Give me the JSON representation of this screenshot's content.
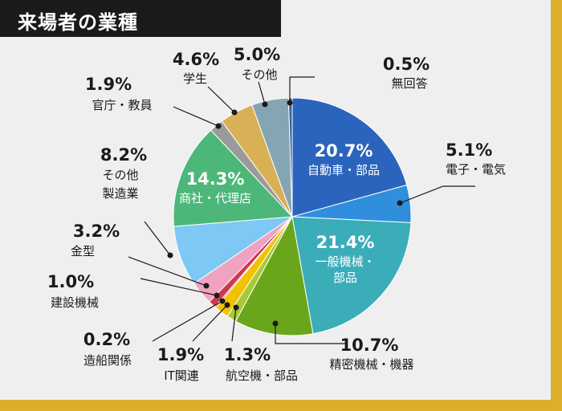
{
  "title": "来場者の業種",
  "colors": {
    "frame": "#dcae2a",
    "panel": "#efefef",
    "title_bg": "#1a1a1a"
  },
  "chart_data": {
    "type": "pie",
    "title": "来場者の業種",
    "start": "top, clockwise",
    "slices": [
      {
        "label": "自動車・部品",
        "value": 20.7,
        "pct_text": "20.7%",
        "color": "#2a64bd",
        "label_inside": true
      },
      {
        "label": "電子・電気",
        "value": 5.1,
        "pct_text": "5.1%",
        "color": "#2f8fdc"
      },
      {
        "label": "一般機械・部品",
        "value": 21.4,
        "pct_text": "21.4%",
        "color": "#3aadb9",
        "label_inside": true
      },
      {
        "label": "精密機械・機器",
        "value": 10.7,
        "pct_text": "10.7%",
        "color": "#6aa61b"
      },
      {
        "label": "航空機・部品",
        "value": 1.3,
        "pct_text": "1.3%",
        "color": "#a7ca37"
      },
      {
        "label": "IT関連",
        "value": 1.9,
        "pct_text": "1.9%",
        "color": "#f2c200"
      },
      {
        "label": "造船関係",
        "value": 0.2,
        "pct_text": "0.2%",
        "color": "#d94a3a"
      },
      {
        "label": "建設機械",
        "value": 1.0,
        "pct_text": "1.0%",
        "color": "#cf3750"
      },
      {
        "label": "金型",
        "value": 3.2,
        "pct_text": "3.2%",
        "color": "#f0a3c0"
      },
      {
        "label": "その他製造業",
        "value": 8.2,
        "pct_text": "8.2%",
        "color": "#7dc8f5"
      },
      {
        "label": "商社・代理店",
        "value": 14.3,
        "pct_text": "14.3%",
        "color": "#4db77a",
        "label_inside": true
      },
      {
        "label": "官庁・教員",
        "value": 1.9,
        "pct_text": "1.9%",
        "color": "#9a9a9a"
      },
      {
        "label": "学生",
        "value": 4.6,
        "pct_text": "4.6%",
        "color": "#d8b055"
      },
      {
        "label": "その他",
        "value": 5.0,
        "pct_text": "5.0%",
        "color": "#84a6b2"
      },
      {
        "label": "無回答",
        "value": 0.5,
        "pct_text": "0.5%",
        "color": "#36659a"
      }
    ]
  },
  "labels": {
    "jidosha": {
      "pct": "20.7%",
      "cat": "自動車・部品"
    },
    "denshi": {
      "pct": "5.1%",
      "cat": "電子・電気"
    },
    "ippan": {
      "pct": "21.4%",
      "cat1": "一般機械・",
      "cat2": "部品"
    },
    "seimitsu": {
      "pct": "10.7%",
      "cat": "精密機械・機器"
    },
    "kokuki": {
      "pct": "1.3%",
      "cat": "航空機・部品"
    },
    "it": {
      "pct": "1.9%",
      "cat": "IT関連"
    },
    "zosen": {
      "pct": "0.2%",
      "cat": "造船関係"
    },
    "kensetsu": {
      "pct": "1.0%",
      "cat": "建設機械"
    },
    "kanagata": {
      "pct": "3.2%",
      "cat": "金型"
    },
    "sonota_seizo": {
      "pct": "8.2%",
      "cat1": "その他",
      "cat2": "製造業"
    },
    "shosha": {
      "pct": "14.3%",
      "cat": "商社・代理店"
    },
    "kancho": {
      "pct": "1.9%",
      "cat": "官庁・教員"
    },
    "gakusei": {
      "pct": "4.6%",
      "cat": "学生"
    },
    "sonota": {
      "pct": "5.0%",
      "cat": "その他"
    },
    "mukaito": {
      "pct": "0.5%",
      "cat": "無回答"
    }
  }
}
